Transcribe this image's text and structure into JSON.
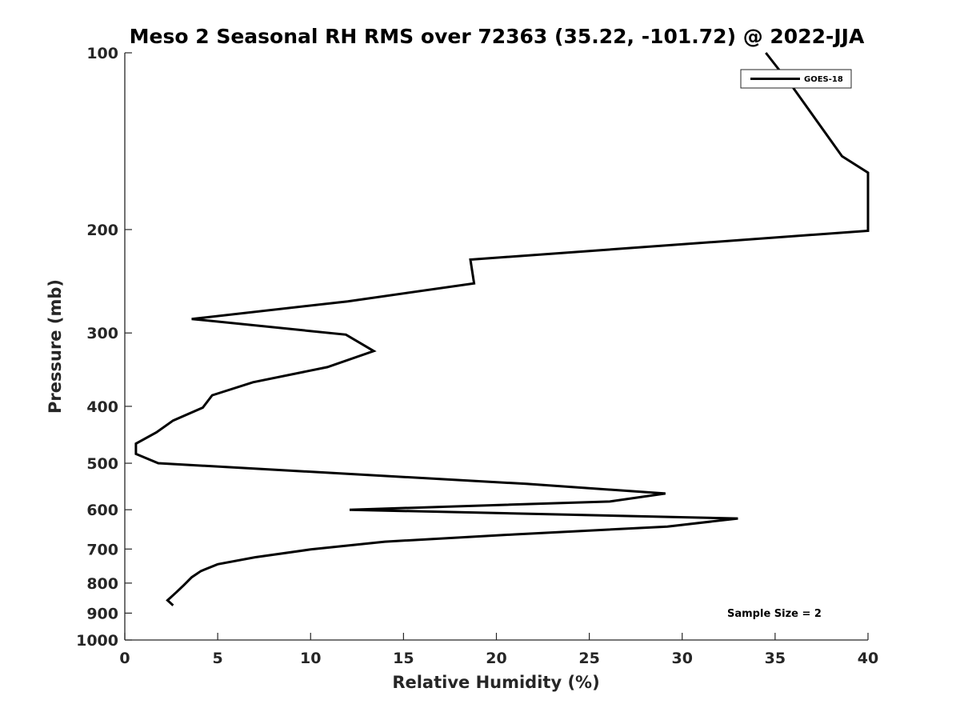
{
  "chart_data": {
    "type": "line",
    "title": "Meso 2 Seasonal RH RMS over 72363 (35.22, -101.72) @ 2022-JJA",
    "xlabel": "Relative Humidity (%)",
    "ylabel": "Pressure (mb)",
    "xlim": [
      0,
      40
    ],
    "ylim": [
      100,
      1000
    ],
    "y_scale": "log",
    "y_reversed": true,
    "x_ticks": [
      0,
      5,
      10,
      15,
      20,
      25,
      30,
      35,
      40
    ],
    "y_ticks": [
      100,
      200,
      300,
      400,
      500,
      600,
      700,
      800,
      900,
      1000
    ],
    "grid": false,
    "legend_position": "top-right",
    "annotation": "Sample Size = 2",
    "series": [
      {
        "name": "GOES-18",
        "color": "#000000",
        "points": [
          {
            "x": 34.5,
            "y": 100
          },
          {
            "x": 36.0,
            "y": 115
          },
          {
            "x": 38.6,
            "y": 150
          },
          {
            "x": 40.0,
            "y": 160
          },
          {
            "x": 40.0,
            "y": 201
          },
          {
            "x": 18.6,
            "y": 225
          },
          {
            "x": 18.8,
            "y": 247
          },
          {
            "x": 12.0,
            "y": 265
          },
          {
            "x": 3.6,
            "y": 284
          },
          {
            "x": 11.9,
            "y": 302
          },
          {
            "x": 13.4,
            "y": 322
          },
          {
            "x": 10.9,
            "y": 343
          },
          {
            "x": 6.9,
            "y": 364
          },
          {
            "x": 4.7,
            "y": 383
          },
          {
            "x": 4.2,
            "y": 402
          },
          {
            "x": 2.6,
            "y": 423
          },
          {
            "x": 1.7,
            "y": 443
          },
          {
            "x": 0.6,
            "y": 463
          },
          {
            "x": 0.6,
            "y": 482
          },
          {
            "x": 1.8,
            "y": 500
          },
          {
            "x": 21.6,
            "y": 542
          },
          {
            "x": 29.1,
            "y": 563
          },
          {
            "x": 26.1,
            "y": 581
          },
          {
            "x": 12.1,
            "y": 600
          },
          {
            "x": 33.0,
            "y": 621
          },
          {
            "x": 29.2,
            "y": 641
          },
          {
            "x": 21.0,
            "y": 661
          },
          {
            "x": 14.0,
            "y": 680
          },
          {
            "x": 10.0,
            "y": 701
          },
          {
            "x": 7.0,
            "y": 723
          },
          {
            "x": 5.0,
            "y": 743
          },
          {
            "x": 4.1,
            "y": 763
          },
          {
            "x": 3.6,
            "y": 782
          },
          {
            "x": 3.2,
            "y": 805
          },
          {
            "x": 2.8,
            "y": 828
          },
          {
            "x": 2.3,
            "y": 856
          },
          {
            "x": 2.6,
            "y": 873
          }
        ]
      }
    ]
  }
}
